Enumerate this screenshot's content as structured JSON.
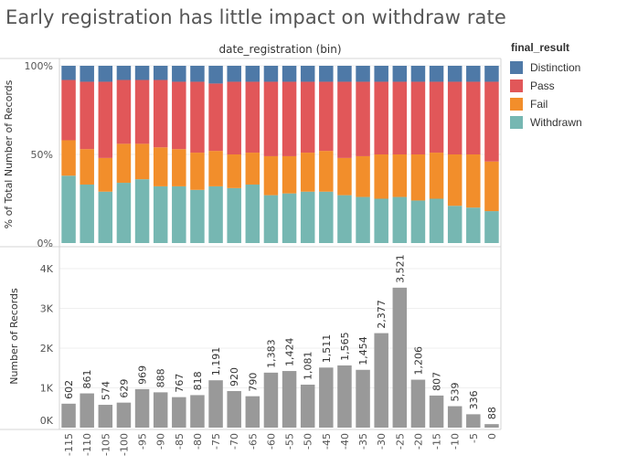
{
  "title": "Early registration has little impact on withdraw rate",
  "legend": {
    "title": "final_result",
    "items": [
      {
        "label": "Distinction",
        "color": "#4e79a7"
      },
      {
        "label": "Pass",
        "color": "#e15759"
      },
      {
        "label": "Fail",
        "color": "#f28e2b"
      },
      {
        "label": "Withdrawn",
        "color": "#76b7b2"
      }
    ]
  },
  "chart_data": [
    {
      "type": "bar",
      "stacked": true,
      "title": "date_registration (bin)",
      "ylabel": "% of Total Number of Records",
      "ylim": [
        0,
        100
      ],
      "yticks": [
        "0%",
        "50%",
        "100%"
      ],
      "categories": [
        "-115",
        "-110",
        "-105",
        "-100",
        "-95",
        "-90",
        "-85",
        "-80",
        "-75",
        "-70",
        "-65",
        "-60",
        "-55",
        "-50",
        "-45",
        "-40",
        "-35",
        "-30",
        "-25",
        "-20",
        "-15",
        "-10",
        "-5",
        "0"
      ],
      "series": [
        {
          "name": "Withdrawn",
          "color": "#76b7b2",
          "values": [
            38,
            33,
            29,
            34,
            36,
            32,
            32,
            30,
            32,
            31,
            33,
            27,
            28,
            29,
            29,
            27,
            26,
            25,
            26,
            24,
            25,
            21,
            20,
            18
          ]
        },
        {
          "name": "Fail",
          "color": "#f28e2b",
          "values": [
            20,
            20,
            19,
            22,
            20,
            22,
            21,
            21,
            20,
            19,
            18,
            22,
            21,
            22,
            23,
            21,
            23,
            25,
            24,
            26,
            26,
            29,
            30,
            28
          ]
        },
        {
          "name": "Pass",
          "color": "#e15759",
          "values": [
            34,
            38,
            43,
            36,
            36,
            38,
            38,
            40,
            38,
            41,
            40,
            42,
            42,
            40,
            39,
            43,
            42,
            41,
            41,
            41,
            40,
            41,
            41,
            45
          ]
        },
        {
          "name": "Distinction",
          "color": "#4e79a7",
          "values": [
            8,
            9,
            9,
            8,
            8,
            8,
            9,
            9,
            10,
            9,
            9,
            9,
            9,
            9,
            9,
            9,
            9,
            9,
            9,
            9,
            9,
            9,
            9,
            9
          ]
        }
      ]
    },
    {
      "type": "bar",
      "ylabel": "Number of Records",
      "ylim": [
        0,
        4300
      ],
      "yticks": [
        "0K",
        "1K",
        "2K",
        "3K",
        "4K"
      ],
      "color": "#999999",
      "categories": [
        "-115",
        "-110",
        "-105",
        "-100",
        "-95",
        "-90",
        "-85",
        "-80",
        "-75",
        "-70",
        "-65",
        "-60",
        "-55",
        "-50",
        "-45",
        "-40",
        "-35",
        "-30",
        "-25",
        "-20",
        "-15",
        "-10",
        "-5",
        "0"
      ],
      "values": [
        602,
        861,
        574,
        629,
        969,
        888,
        767,
        818,
        1191,
        920,
        790,
        1383,
        1424,
        1081,
        1511,
        1565,
        1454,
        2377,
        3521,
        1206,
        807,
        539,
        336,
        88
      ],
      "labels": [
        "602",
        "861",
        "574",
        "629",
        "969",
        "888",
        "767",
        "818",
        "1,191",
        "920",
        "790",
        "1,383",
        "1,424",
        "1,081",
        "1,511",
        "1,565",
        "1,454",
        "2,377",
        "3,521",
        "1,206",
        "807",
        "539",
        "336",
        "88"
      ]
    }
  ]
}
